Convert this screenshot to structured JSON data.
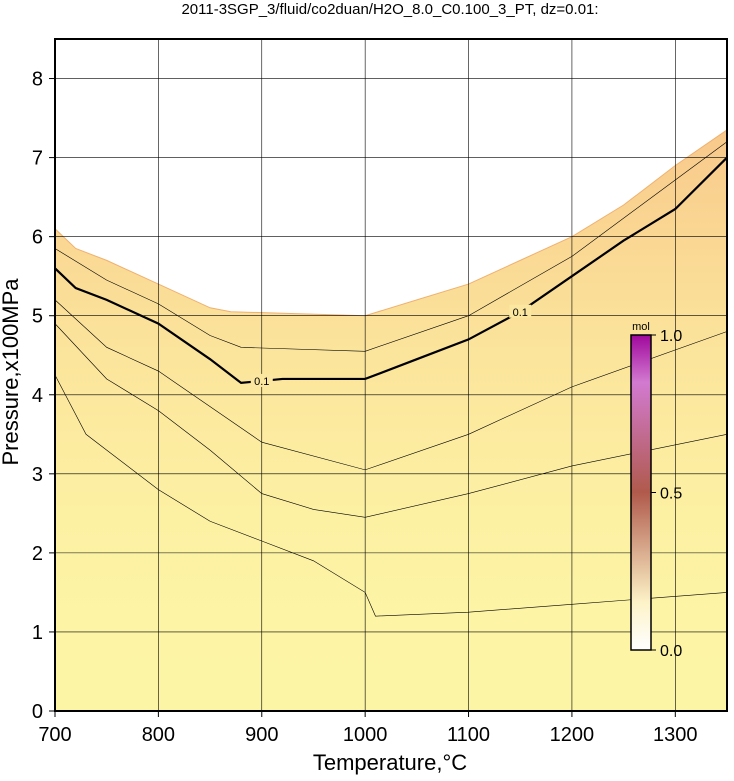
{
  "chart_data": {
    "type": "contour",
    "title": "2011-3SGP_3/fluid/co2duan/H2O_8.0_C0.100_3_PT, dz=0.01:",
    "x_label": "Temperature,°C",
    "y_label": "Pressure,x100MPa",
    "xlim": [
      700,
      1350
    ],
    "xticks": [
      700,
      800,
      900,
      1000,
      1100,
      1200,
      1300
    ],
    "ylim": [
      0,
      8.5
    ],
    "yticks": [
      0,
      1,
      2,
      3,
      4,
      5,
      6,
      7,
      8
    ],
    "grid": true,
    "fill_color": "#fdf5a6",
    "boundary": {
      "x": [
        700,
        720,
        750,
        800,
        850,
        870,
        1000,
        1050,
        1100,
        1150,
        1200,
        1250,
        1300,
        1350
      ],
      "y": [
        6.1,
        5.85,
        5.7,
        5.4,
        5.1,
        5.05,
        5.0,
        5.2,
        5.4,
        5.7,
        6.0,
        6.4,
        6.9,
        7.35
      ]
    },
    "contours": [
      {
        "x": [
          700,
          720,
          750,
          800,
          850,
          880,
          920,
          1000,
          1050,
          1100,
          1150,
          1200,
          1250,
          1300,
          1350
        ],
        "y": [
          5.6,
          5.35,
          5.2,
          4.9,
          4.45,
          4.15,
          4.2,
          4.2,
          4.45,
          4.7,
          5.05,
          5.5,
          5.95,
          6.35,
          7.0
        ],
        "label": "0.1",
        "width": 2.2
      },
      {
        "x": [
          700,
          750,
          800,
          850,
          880,
          1000,
          1100,
          1200,
          1350
        ],
        "y": [
          5.85,
          5.45,
          5.15,
          4.75,
          4.6,
          4.55,
          5.0,
          5.75,
          7.2
        ],
        "width": 0.6
      },
      {
        "x": [
          700,
          750,
          800,
          900,
          1000,
          1100,
          1200,
          1350
        ],
        "y": [
          5.2,
          4.6,
          4.3,
          3.4,
          3.05,
          3.5,
          4.1,
          4.8
        ],
        "width": 0.6
      },
      {
        "x": [
          700,
          750,
          800,
          850,
          900,
          950,
          1000,
          1100,
          1200,
          1350
        ],
        "y": [
          4.9,
          4.2,
          3.8,
          3.3,
          2.75,
          2.55,
          2.45,
          2.75,
          3.1,
          3.5
        ],
        "width": 0.6
      },
      {
        "x": [
          700,
          710,
          730,
          750,
          800,
          850,
          900,
          950,
          1000,
          1010,
          1100,
          1200,
          1350
        ],
        "y": [
          4.25,
          4.0,
          3.5,
          3.3,
          2.8,
          2.4,
          2.15,
          1.9,
          1.5,
          1.2,
          1.25,
          1.35,
          1.5
        ],
        "width": 0.6
      }
    ],
    "colorbar": {
      "unit": "mol",
      "lim": [
        0,
        1
      ],
      "ticks": [
        {
          "value": 0,
          "label": "0.0"
        },
        {
          "value": 0.5,
          "label": "0.5"
        },
        {
          "value": 1,
          "label": "1.0"
        }
      ]
    }
  }
}
